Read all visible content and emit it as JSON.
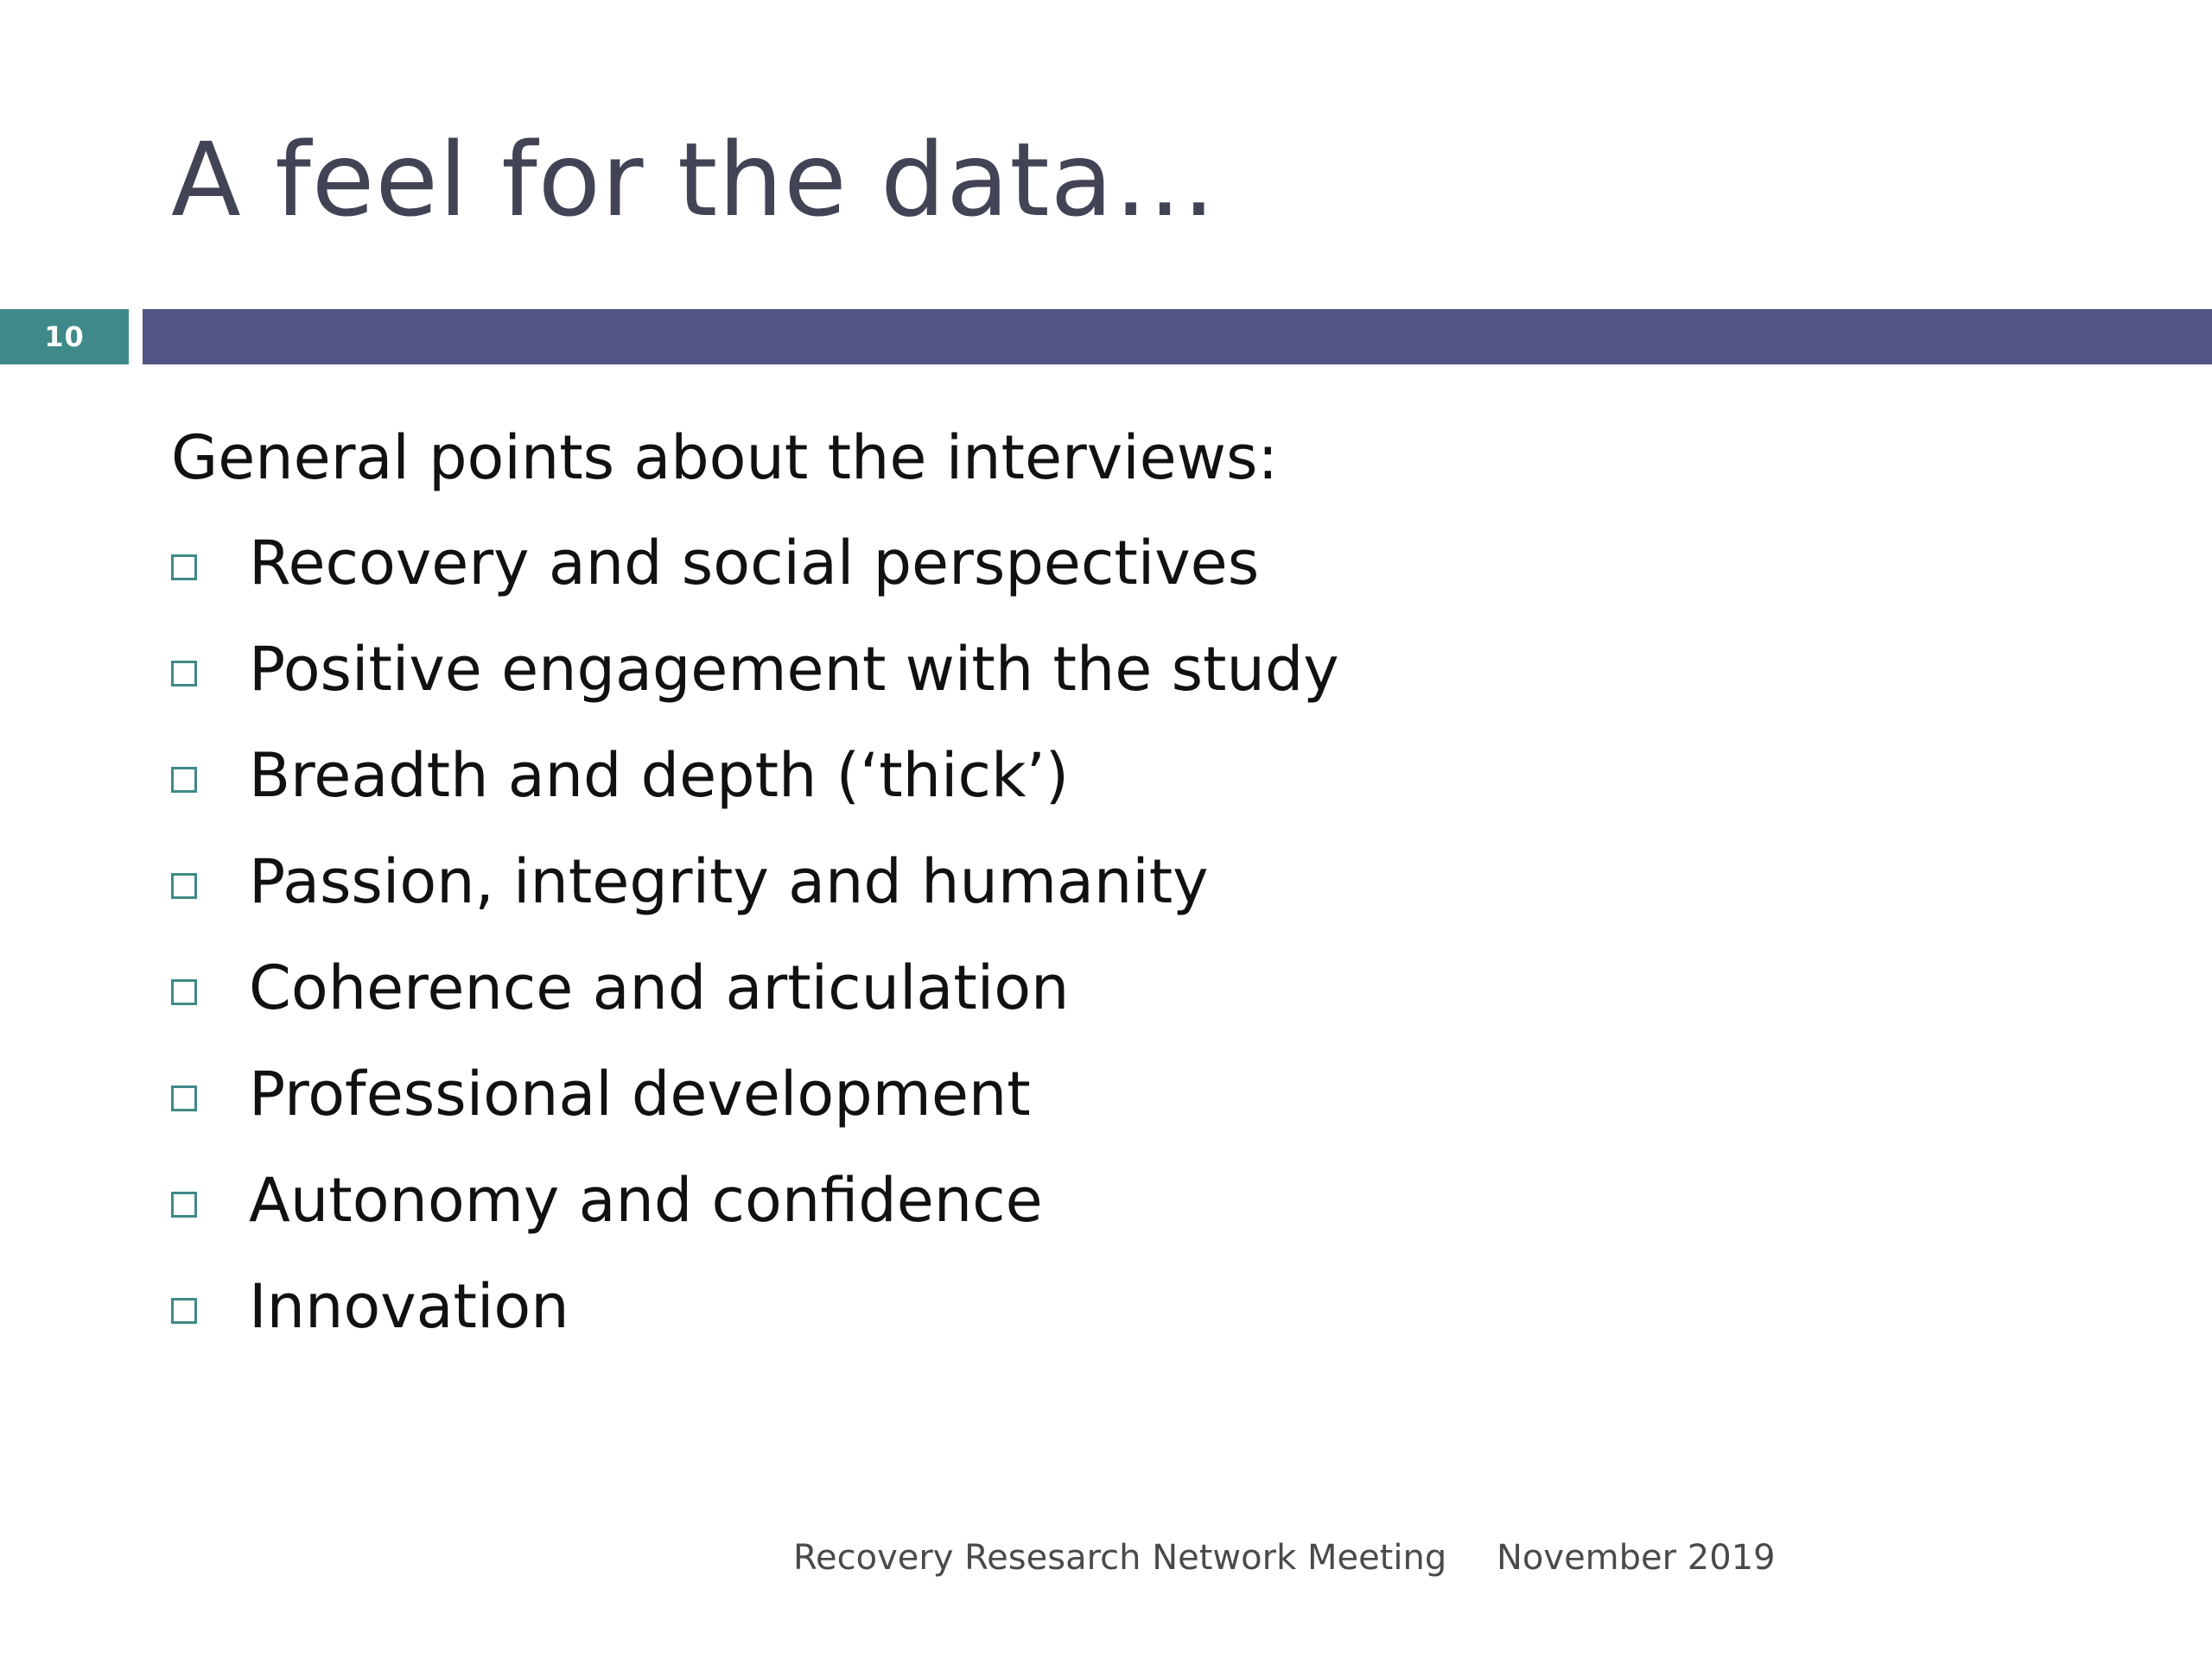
{
  "slide": {
    "title": "A feel for the data…",
    "number": "10",
    "intro": "General points about the interviews:",
    "bullets": [
      "Recovery and social perspectives",
      "Positive engagement with the study",
      "Breadth and depth (‘thick’)",
      "Passion, integrity and humanity",
      "Coherence and articulation",
      "Professional development",
      "Autonomy and confidence",
      "Innovation"
    ],
    "footer": {
      "left": "Recovery Resesarch Network Meeting",
      "right": "November 2019"
    }
  },
  "colors": {
    "title_text": "#424456",
    "title_bar": "#545385",
    "number_box": "#3f8a88",
    "bullet_box": "#3f8a88",
    "body_text": "#111111"
  },
  "icons": {
    "bullet": "hollow-square-bullet"
  }
}
